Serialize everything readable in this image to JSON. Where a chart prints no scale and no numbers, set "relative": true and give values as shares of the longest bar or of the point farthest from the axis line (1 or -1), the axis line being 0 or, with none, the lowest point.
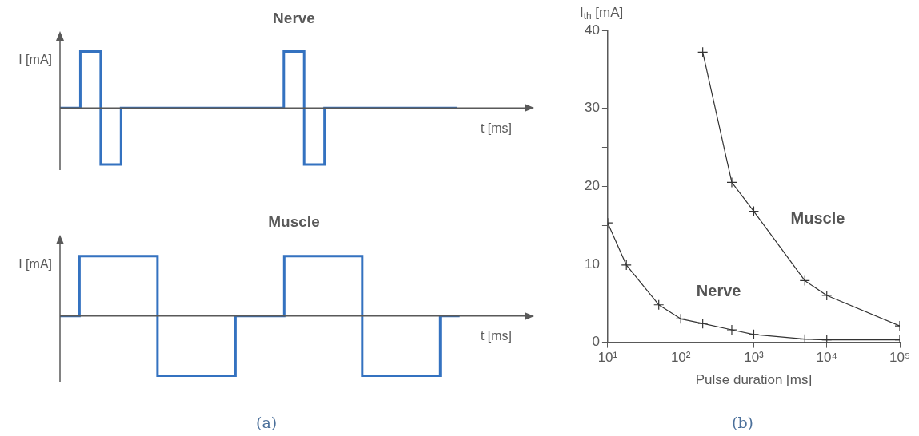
{
  "chart_data": [
    {
      "type": "step",
      "title": "Nerve",
      "xlabel": "t [ms]",
      "ylabel": "I [mA]",
      "relative": true,
      "categories": [
        null,
        null,
        null,
        null,
        null,
        null,
        null,
        null,
        null,
        null,
        null,
        null,
        null,
        null,
        null,
        null,
        null,
        null,
        null,
        null,
        null,
        null,
        null,
        null,
        null,
        null,
        null,
        null,
        null,
        null,
        null,
        null,
        null,
        null,
        null,
        null,
        null,
        null,
        null,
        null,
        null,
        null,
        null,
        null,
        null,
        null,
        null
      ],
      "series": [
        {
          "color": "#3472c0",
          "values": [
            0,
            0,
            0,
            1,
            1,
            -1,
            -1,
            0,
            0,
            0,
            0,
            0,
            0,
            0,
            0,
            0,
            0,
            0,
            0,
            0,
            0,
            0,
            0,
            1,
            1,
            -1,
            -1,
            0,
            0,
            0,
            0,
            0,
            0,
            0,
            0,
            0,
            0,
            0,
            0,
            0,
            null,
            null,
            null,
            null,
            null,
            null,
            null
          ]
        }
      ]
    },
    {
      "type": "step",
      "title": "Muscle",
      "xlabel": "t [ms]",
      "ylabel": "I [mA]",
      "relative": true,
      "categories": [
        null,
        null,
        null,
        null,
        null,
        null,
        null,
        null,
        null,
        null,
        null,
        null,
        null,
        null,
        null,
        null,
        null,
        null,
        null,
        null,
        null,
        null,
        null,
        null,
        null,
        null,
        null,
        null,
        null,
        null,
        null,
        null,
        null,
        null,
        null,
        null,
        null,
        null,
        null,
        null,
        null,
        null,
        null,
        null,
        null,
        null,
        null,
        null,
        null
      ],
      "series": [
        {
          "color": "#3472c0",
          "values": [
            0,
            0,
            0,
            1,
            1,
            1,
            1,
            1,
            1,
            1,
            1,
            -1,
            -1,
            -1,
            -1,
            -1,
            -1,
            -1,
            -1,
            0,
            0,
            0,
            0,
            0,
            1,
            1,
            1,
            1,
            1,
            1,
            1,
            1,
            -1,
            -1,
            -1,
            -1,
            -1,
            -1,
            -1,
            -1,
            0,
            0,
            null,
            null,
            null,
            null,
            null,
            null,
            null
          ]
        }
      ],
      "annotations": [
        "(a)"
      ]
    },
    {
      "type": "line",
      "xlabel": "Pulse duration [ms]",
      "ylabel": "I$_{th}$ [mA]",
      "log": "x",
      "marker": "cross",
      "xlim": [
        10,
        100000
      ],
      "xticks": [
        {
          "value": 10,
          "label": "10¹"
        },
        {
          "value": 100,
          "label": "10²"
        },
        {
          "value": 1000,
          "label": "10³"
        },
        {
          "value": 10000,
          "label": "10⁴"
        },
        {
          "value": 100000,
          "label": "10⁵"
        }
      ],
      "ylim": [
        0,
        40
      ],
      "yticks": [
        0,
        {
          "value": 5,
          "label": null
        },
        10,
        {
          "value": 15,
          "label": null
        },
        20,
        {
          "value": 25,
          "label": null
        },
        30,
        {
          "value": 35,
          "label": null
        },
        40
      ],
      "series": [
        {
          "name": "Nerve",
          "color": "#333333",
          "x": [
            10,
            18,
            50,
            100,
            200,
            500,
            1000,
            5000,
            10000,
            100000
          ],
          "values": [
            15.3,
            9.9,
            4.8,
            3.0,
            2.4,
            1.6,
            1.0,
            0.4,
            0.3,
            0.3
          ]
        },
        {
          "name": "Muscle",
          "color": "#333333",
          "x": [
            200,
            500,
            1000,
            5000,
            10000,
            100000
          ],
          "values": [
            37.2,
            20.5,
            16.8,
            7.9,
            6.0,
            2.1
          ]
        }
      ],
      "annotations": [
        "(b)"
      ]
    }
  ]
}
